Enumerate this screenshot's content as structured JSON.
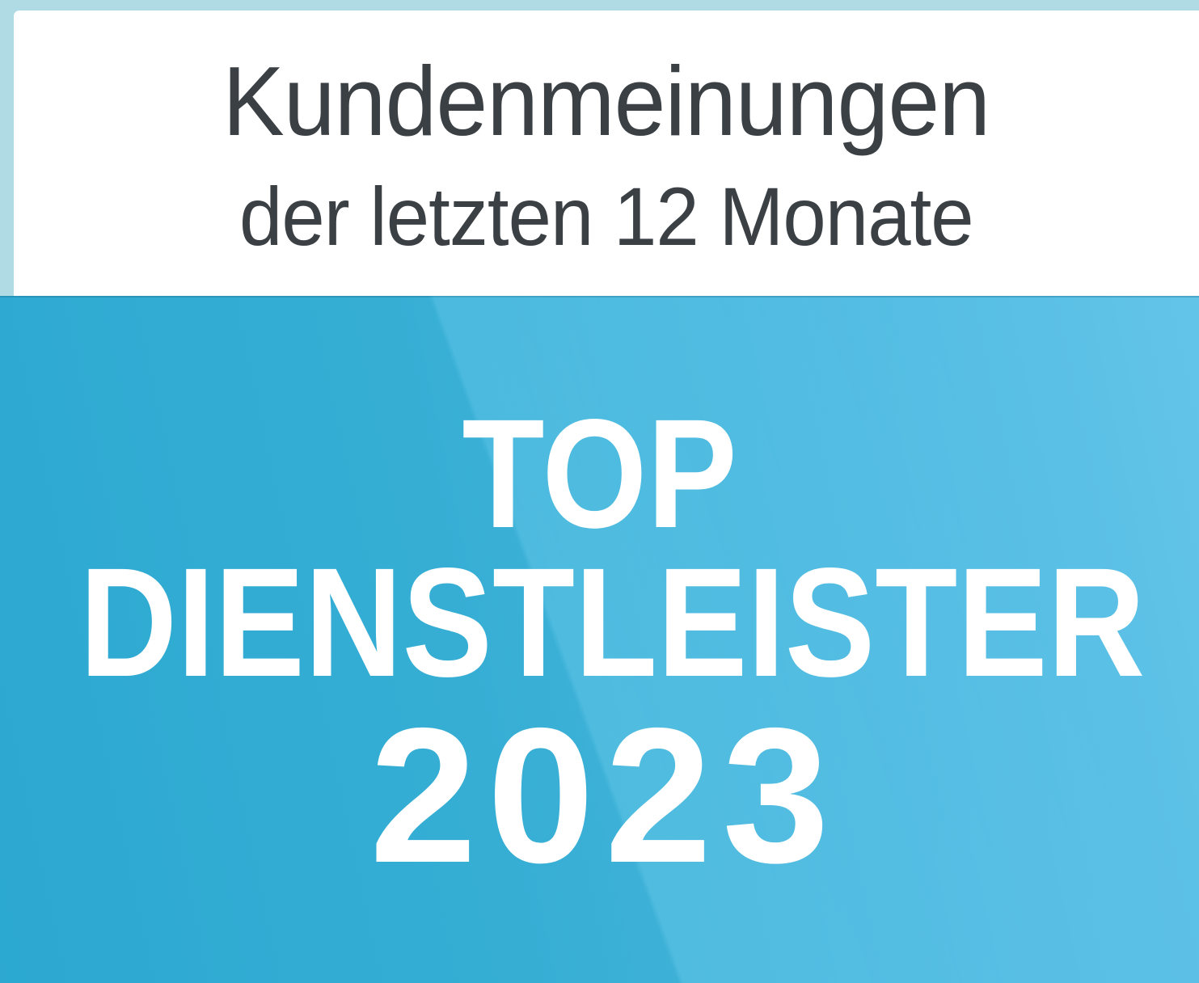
{
  "header": {
    "line1": "Kundenmeinungen",
    "line2": "der letzten 12 Monate"
  },
  "seal": {
    "line1": "TOP",
    "line2": "DIENSTLEISTER",
    "year": "2023"
  },
  "colors": {
    "frame_light_blue": "#b0dae4",
    "panel_white": "#ffffff",
    "header_text": "#3b4045",
    "seal_text": "#ffffff",
    "blue_gradient_left": "#2dadd6",
    "blue_gradient_mid1": "#38b3da",
    "blue_gradient_mid2": "#52bce3",
    "blue_gradient_right": "#63c4e8"
  }
}
